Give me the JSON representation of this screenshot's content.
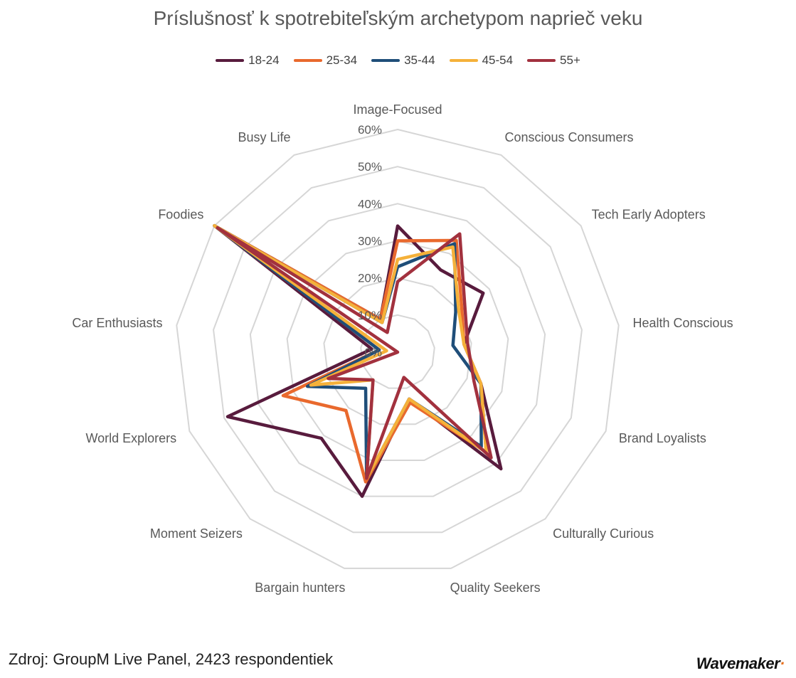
{
  "chart_data": {
    "type": "radar",
    "title": "Príslušnosť k spotrebiteľským archetypom naprieč veku",
    "categories": [
      "Image-Focused",
      "Conscious Consumers",
      "Tech Early Adopters",
      "Health Conscious",
      "Brand Loyalists",
      "Culturally Curious",
      "Quality Seekers",
      "Bargain hunters",
      "Moment Seizers",
      "World Explorers",
      "Car Enthusiasts",
      "Foodies",
      "Busy Life"
    ],
    "rticks": [
      "0%",
      "10%",
      "20%",
      "30%",
      "40%",
      "50%",
      "60%"
    ],
    "rlim": [
      0,
      60
    ],
    "series": [
      {
        "name": "18-24",
        "color": "#581b3d",
        "values": [
          34,
          25,
          28,
          18,
          24,
          42,
          13,
          40,
          31,
          49,
          7,
          60,
          10
        ]
      },
      {
        "name": "25-34",
        "color": "#e9692d",
        "values": [
          30,
          34,
          21,
          18,
          24,
          36,
          14,
          36,
          21,
          33,
          5,
          60,
          10
        ]
      },
      {
        "name": "35-44",
        "color": "#1f4e79",
        "values": [
          23,
          33,
          19,
          15,
          24,
          34,
          13,
          35,
          13,
          26,
          5,
          60,
          9
        ]
      },
      {
        "name": "45-54",
        "color": "#f5b13a",
        "values": [
          25,
          32,
          20,
          18,
          24,
          36,
          13,
          35,
          10,
          25,
          3,
          60,
          9
        ]
      },
      {
        "name": "55+",
        "color": "#a2313e",
        "values": [
          19,
          36,
          22,
          19,
          22,
          38,
          7,
          35,
          10,
          20,
          0,
          59,
          6
        ]
      }
    ],
    "legend_position": "top",
    "grid": true
  },
  "source_note": "Zdroj: GroupM Live Panel, 2423 respondentiek",
  "brand": {
    "name": "Wavemaker",
    "dot": "·",
    "accent": "#e8711f"
  }
}
